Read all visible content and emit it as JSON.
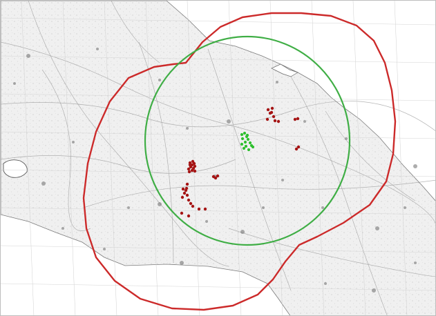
{
  "map": {
    "type": "topographic-overlay",
    "background": "#ffffff",
    "land_color": "#ebebeb",
    "road_color": "#9a9a9a",
    "settlement_color": "#6a6a6a"
  },
  "overlays": {
    "zones": [
      {
        "id": "outer-range-zone",
        "color": "#cc2a2a"
      },
      {
        "id": "inner-range-circle",
        "color": "#3fae45"
      }
    ],
    "markers": {
      "red_color": "#a51414",
      "green_color": "#2fbf2f",
      "red_count": 41,
      "green_count": 14
    }
  }
}
